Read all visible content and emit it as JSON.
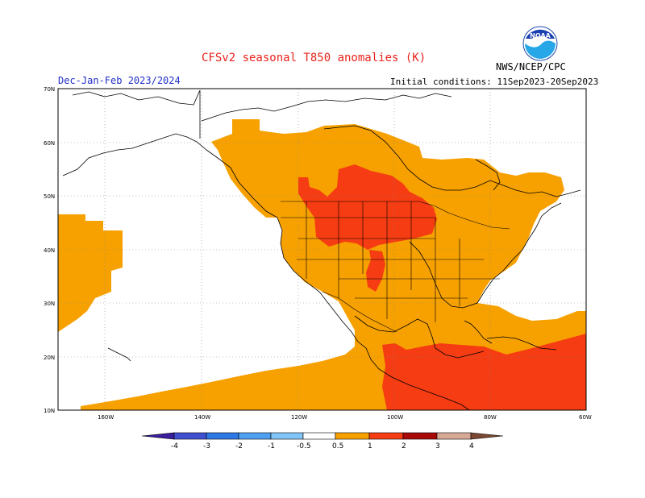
{
  "title": "CFSv2 seasonal T850 anomalies (K)",
  "period": "Dec-Jan-Feb 2023/2024",
  "initial_conditions": "Initial conditions: 11Sep2023-20Sep2023",
  "agency": "NWS/NCEP/CPC",
  "logo_text": "NOAA",
  "lat_labels": [
    "70N",
    "60N",
    "50N",
    "40N",
    "30N",
    "20N",
    "10N"
  ],
  "lon_labels": [
    "160W",
    "140W",
    "120W",
    "100W",
    "80W",
    "60W"
  ],
  "legend": {
    "labels": [
      "-4",
      "-3",
      "-2",
      "-1",
      "-0.5",
      "0.5",
      "1",
      "2",
      "3",
      "4"
    ],
    "colors": [
      "#3a1e9c",
      "#4050d0",
      "#2e78e6",
      "#4ea0f0",
      "#80c4f8",
      "#ffffff",
      "#f7a100",
      "#f53c12",
      "#a80a0a",
      "#d8a896",
      "#7a4830"
    ]
  }
}
